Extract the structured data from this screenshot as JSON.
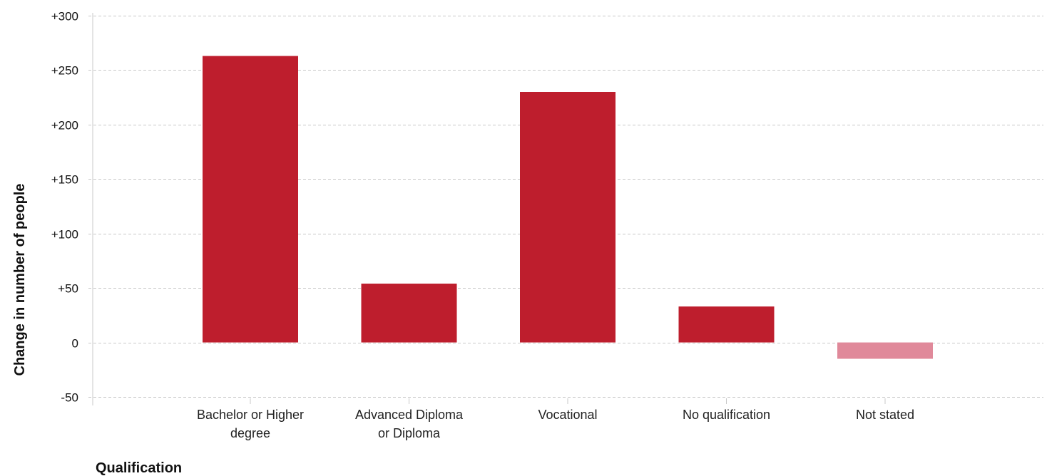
{
  "chart_data": {
    "type": "bar",
    "categories": [
      [
        "Bachelor or Higher",
        "degree"
      ],
      [
        "Advanced Diploma",
        "or Diploma"
      ],
      [
        "Vocational"
      ],
      [
        "No qualification"
      ],
      [
        "Not stated"
      ]
    ],
    "values": [
      263,
      54,
      230,
      33,
      -15
    ],
    "bar_colors": [
      "#be1e2d",
      "#be1e2d",
      "#be1e2d",
      "#be1e2d",
      "#e0899a"
    ],
    "title": "",
    "xlabel": "Qualification",
    "ylabel": "Change in number of people",
    "ylim": [
      -50,
      300
    ],
    "yticks": [
      300,
      250,
      200,
      150,
      100,
      50,
      0,
      -50
    ],
    "ytick_labels": [
      "+300",
      "+250",
      "+200",
      "+150",
      "+100",
      "+50",
      "0",
      "-50"
    ],
    "grid": true,
    "gridline_color": "#c8c8c8",
    "legend": "none"
  }
}
